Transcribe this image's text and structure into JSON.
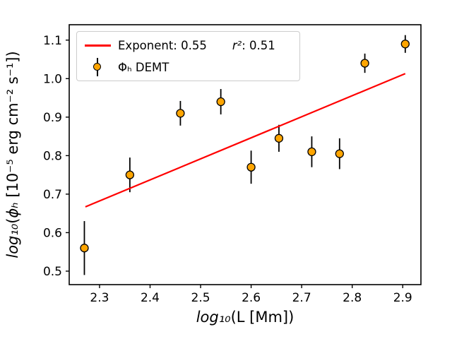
{
  "chart_data": {
    "type": "scatter",
    "title": "",
    "grid": false,
    "legend_position": "upper-left",
    "xlim": [
      2.24,
      2.936
    ],
    "ylim": [
      0.465,
      1.14
    ],
    "x_ticks": [
      {
        "v": 2.3,
        "label": "2.3"
      },
      {
        "v": 2.4,
        "label": "2.4"
      },
      {
        "v": 2.5,
        "label": "2.5"
      },
      {
        "v": 2.6,
        "label": "2.6"
      },
      {
        "v": 2.7,
        "label": "2.7"
      },
      {
        "v": 2.8,
        "label": "2.8"
      },
      {
        "v": 2.9,
        "label": "2.9"
      }
    ],
    "y_ticks": [
      {
        "v": 0.5,
        "label": "0.5"
      },
      {
        "v": 0.6,
        "label": "0.6"
      },
      {
        "v": 0.7,
        "label": "0.7"
      },
      {
        "v": 0.8,
        "label": "0.8"
      },
      {
        "v": 0.9,
        "label": "0.9"
      },
      {
        "v": 1.0,
        "label": "1.0"
      },
      {
        "v": 1.1,
        "label": "1.1"
      }
    ],
    "xlabel_parts": [
      {
        "t": "log₁₀",
        "i": true
      },
      {
        "t": "(L [Mm])",
        "i": false
      }
    ],
    "ylabel_parts": [
      {
        "t": "log₁₀",
        "i": true
      },
      {
        "t": "(",
        "i": false
      },
      {
        "t": "ϕₕ",
        "i": true
      },
      {
        "t": " [10⁻⁵ erg cm⁻² s⁻¹])",
        "i": false
      }
    ],
    "series": [
      {
        "name": "Φₕ DEMT",
        "type": "scatter-errorbar",
        "marker_color": "#ffa500",
        "marker_edge_color": "#000000",
        "errorbar_color": "#000000",
        "points": [
          {
            "x": 2.27,
            "y": 0.56,
            "err": 0.07
          },
          {
            "x": 2.36,
            "y": 0.75,
            "err": 0.045
          },
          {
            "x": 2.46,
            "y": 0.91,
            "err": 0.032
          },
          {
            "x": 2.54,
            "y": 0.94,
            "err": 0.033
          },
          {
            "x": 2.6,
            "y": 0.77,
            "err": 0.043
          },
          {
            "x": 2.655,
            "y": 0.845,
            "err": 0.035
          },
          {
            "x": 2.72,
            "y": 0.81,
            "err": 0.04
          },
          {
            "x": 2.775,
            "y": 0.805,
            "err": 0.04
          },
          {
            "x": 2.825,
            "y": 1.04,
            "err": 0.025
          },
          {
            "x": 2.905,
            "y": 1.09,
            "err": 0.023
          }
        ]
      },
      {
        "type": "line",
        "color": "#ff0000",
        "x": [
          2.272,
          2.905
        ],
        "y": [
          0.667,
          1.013
        ]
      }
    ],
    "legend": {
      "entries": [
        {
          "swatch": "line",
          "color": "#ff0000",
          "labels": [
            [
              {
                "t": "Exponent: 0.55",
                "i": false
              }
            ],
            [
              {
                "t": "r²",
                "i": true
              },
              {
                "t": ": 0.51",
                "i": false
              }
            ]
          ]
        },
        {
          "swatch": "errorbar-marker",
          "color": "#ffa500",
          "labels": [
            [
              {
                "t": "Φₕ DEMT",
                "i": false
              }
            ]
          ]
        }
      ]
    }
  }
}
